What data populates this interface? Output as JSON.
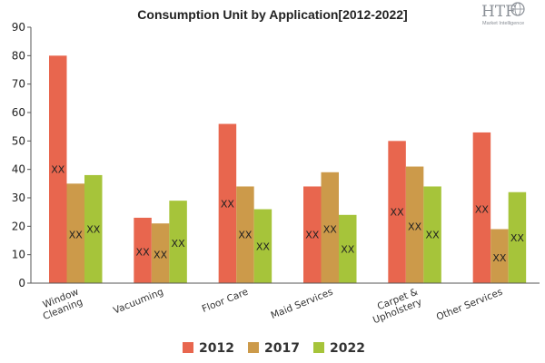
{
  "chart_data": {
    "type": "bar",
    "title": "Consumption Unit by  Application[2012-2022]",
    "categories": [
      [
        "Window",
        "Cleaning"
      ],
      [
        "Vacuuming"
      ],
      [
        "Floor Care"
      ],
      [
        "Maid Services"
      ],
      [
        "Carpet &",
        "Upholstery"
      ],
      [
        "Other Services"
      ]
    ],
    "series": [
      {
        "name": "2012",
        "color": "#e8664e",
        "values": [
          80,
          23,
          56,
          34,
          50,
          53
        ],
        "labels": [
          "XX",
          "XX",
          "XX",
          "XX",
          "XX",
          "XX"
        ],
        "label_values": [
          40,
          11,
          28,
          17,
          25,
          26
        ]
      },
      {
        "name": "2017",
        "color": "#cc9a4a",
        "values": [
          35,
          21,
          34,
          39,
          41,
          19
        ],
        "labels": [
          "XX",
          "XX",
          "XX",
          "XX",
          "XX",
          "XX"
        ],
        "label_values": [
          17,
          10,
          17,
          19,
          20,
          9
        ]
      },
      {
        "name": "2022",
        "color": "#a6c43a",
        "values": [
          38,
          29,
          26,
          24,
          34,
          32
        ],
        "labels": [
          "XX",
          "XX",
          "XX",
          "XX",
          "XX",
          "XX"
        ],
        "label_values": [
          19,
          14,
          13,
          12,
          17,
          16
        ]
      }
    ],
    "ylim": [
      0,
      90
    ],
    "yticks": [
      "0",
      "10",
      "20",
      "30",
      "40",
      "50",
      "60",
      "70",
      "80",
      "90"
    ],
    "grid": false,
    "legend": "bottom",
    "xlabel": "",
    "ylabel": ""
  },
  "logo": {
    "name": "HTF",
    "tagline": "Market Intelligence"
  }
}
